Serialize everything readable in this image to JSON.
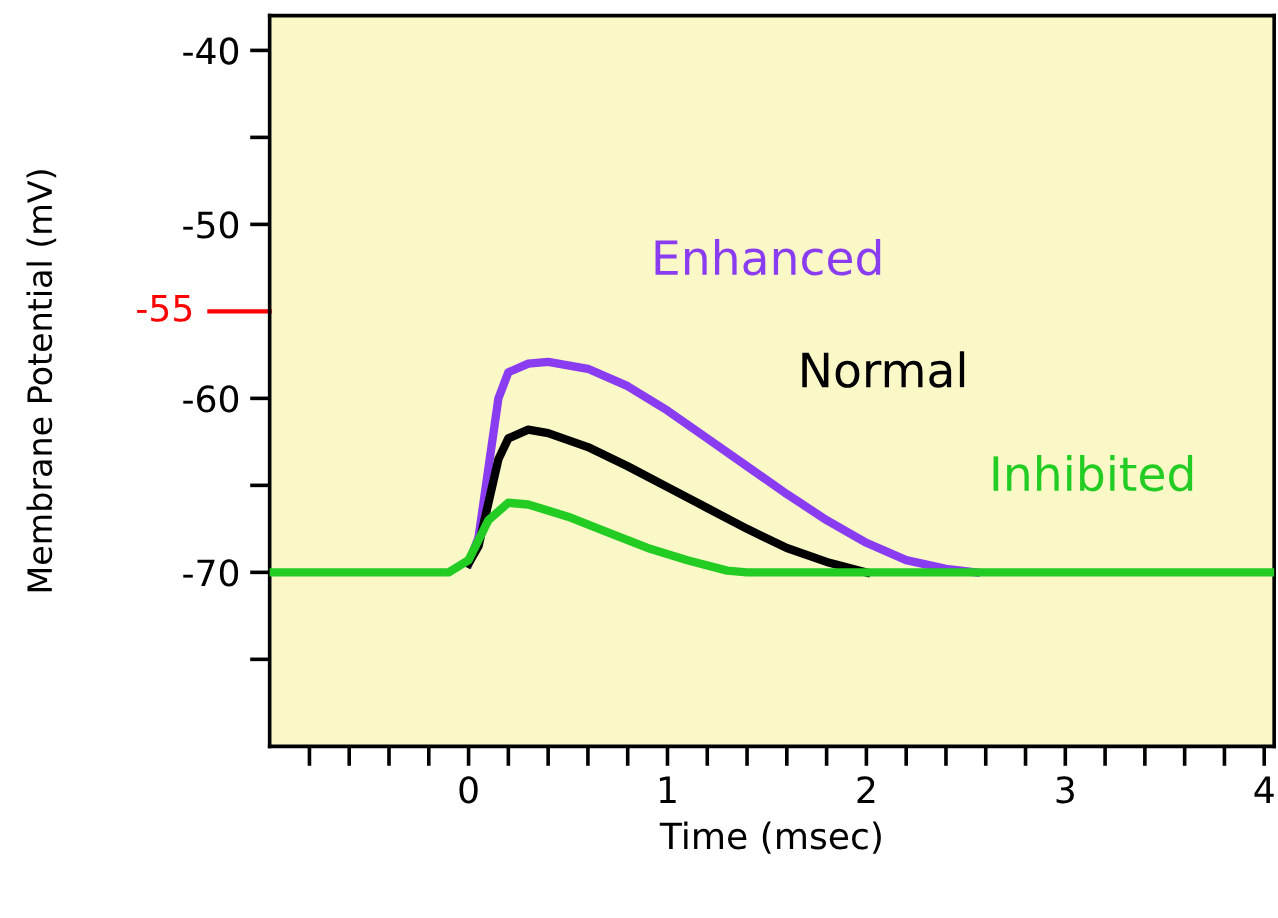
{
  "chart_data": {
    "type": "line",
    "xlabel": "Time (msec)",
    "ylabel": "Membrane Potential (mV)",
    "xlim": [
      -1,
      4.05
    ],
    "ylim": [
      -80,
      -38
    ],
    "xticks": [
      {
        "value": -0.8,
        "label": null
      },
      {
        "value": -0.6,
        "label": null
      },
      {
        "value": -0.4,
        "label": null
      },
      {
        "value": -0.2,
        "label": null
      },
      0,
      {
        "value": 0.2,
        "label": null
      },
      {
        "value": 0.4,
        "label": null
      },
      {
        "value": 0.6,
        "label": null
      },
      {
        "value": 0.8,
        "label": null
      },
      1,
      {
        "value": 1.2,
        "label": null
      },
      {
        "value": 1.4,
        "label": null
      },
      {
        "value": 1.6,
        "label": null
      },
      {
        "value": 1.8,
        "label": null
      },
      2,
      {
        "value": 2.2,
        "label": null
      },
      {
        "value": 2.4,
        "label": null
      },
      {
        "value": 2.6,
        "label": null
      },
      {
        "value": 2.8,
        "label": null
      },
      3,
      {
        "value": 3.2,
        "label": null
      },
      {
        "value": 3.4,
        "label": null
      },
      {
        "value": 3.6,
        "label": null
      },
      {
        "value": 3.8,
        "label": null
      },
      4
    ],
    "yticks": [
      -40,
      {
        "value": -45,
        "label": null
      },
      -50,
      -60,
      {
        "value": -65,
        "label": null
      },
      -70,
      {
        "value": -75,
        "label": null
      }
    ],
    "ref_lines": [
      {
        "axis": "y",
        "value": -55,
        "label": "-55",
        "color": "#ff0000"
      }
    ],
    "grid": false,
    "legend": false,
    "marker": "none",
    "line_style": "solid",
    "series": [
      {
        "name": "Enhanced",
        "color": "#8a3cf0",
        "x": [
          0,
          0.05,
          0.1,
          0.15,
          0.2,
          0.3,
          0.4,
          0.6,
          0.8,
          1.0,
          1.2,
          1.4,
          1.6,
          1.8,
          2.0,
          2.2,
          2.4,
          2.55
        ],
        "values": [
          -69.5,
          -68,
          -64,
          -60,
          -58.5,
          -58,
          -57.9,
          -58.3,
          -59.3,
          -60.7,
          -62.3,
          -63.9,
          -65.5,
          -67,
          -68.3,
          -69.3,
          -69.8,
          -70
        ]
      },
      {
        "name": "Normal",
        "color": "#000000",
        "x": [
          0,
          0.05,
          0.1,
          0.15,
          0.2,
          0.3,
          0.4,
          0.6,
          0.8,
          1.0,
          1.2,
          1.4,
          1.6,
          1.8,
          2.0
        ],
        "values": [
          -69.5,
          -68.5,
          -66,
          -63.5,
          -62.3,
          -61.8,
          -62,
          -62.8,
          -63.9,
          -65.1,
          -66.3,
          -67.5,
          -68.6,
          -69.4,
          -70
        ]
      },
      {
        "name": "Inhibited",
        "color": "#22cc22",
        "x": [
          -1,
          -0.1,
          0,
          0.1,
          0.2,
          0.3,
          0.5,
          0.7,
          0.9,
          1.1,
          1.3,
          1.4,
          4.05
        ],
        "values": [
          -70,
          -70,
          -69.3,
          -67,
          -66,
          -66.1,
          -66.8,
          -67.7,
          -68.6,
          -69.3,
          -69.9,
          -70,
          -70
        ]
      }
    ]
  }
}
